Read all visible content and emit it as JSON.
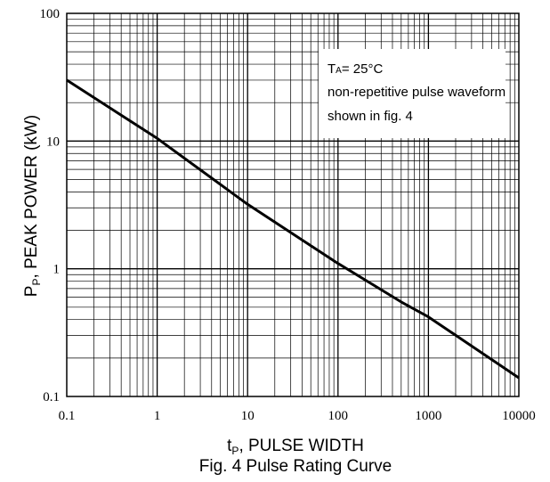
{
  "chart_data": {
    "type": "line",
    "x_scale": "log",
    "y_scale": "log",
    "xlim": [
      0.1,
      10000
    ],
    "ylim": [
      0.1,
      100
    ],
    "grid": true,
    "x_ticks": [
      "0.1",
      "1",
      "10",
      "100",
      "1000",
      "10000"
    ],
    "y_ticks": [
      "0.1",
      "1",
      "10",
      "100"
    ],
    "xlabel": {
      "t": "t",
      "sub": "P",
      "rest": ", PULSE WIDTH"
    },
    "ylabel": {
      "p": "P",
      "sub": "P",
      "rest": ", PEAK POWER (kW)"
    },
    "caption": "Fig. 4 Pulse Rating Curve",
    "annotation": {
      "line1_prefix": "T",
      "line1_sub": "A",
      "line1_rest": "= 25°C",
      "line2": "non-repetitive pulse waveform",
      "line3": "shown in fig. 4"
    },
    "series": [
      {
        "x": [
          0.1,
          1,
          10,
          100,
          500,
          1000,
          10000
        ],
        "y": [
          30,
          10.5,
          3.2,
          1.1,
          0.55,
          0.42,
          0.14
        ]
      }
    ]
  }
}
